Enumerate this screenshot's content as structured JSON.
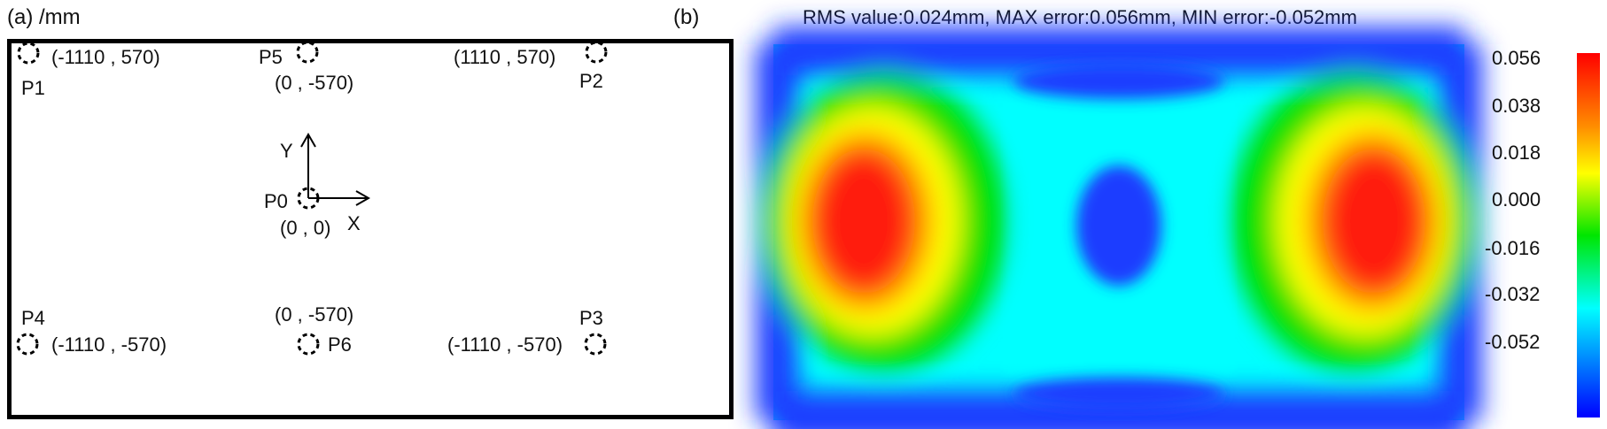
{
  "panel_a": {
    "title": "(a) /mm",
    "points": [
      {
        "id": "P1",
        "coord": "(-1110 , 570)"
      },
      {
        "id": "P2",
        "coord": "(1110 , 570)"
      },
      {
        "id": "P5",
        "coord": "(0 , -570)"
      },
      {
        "id": "P0",
        "coord": "(0 , 0)"
      },
      {
        "id": "P4",
        "coord": "(-1110 , -570)"
      },
      {
        "id": "P6",
        "coord": "(0 , -570)"
      },
      {
        "id": "P3",
        "coord": "(-1110 , -570)"
      }
    ],
    "axis_y": "Y",
    "axis_x": "X"
  },
  "panel_b": {
    "title": "(b)",
    "stats": "RMS value:0.024mm, MAX error:0.056mm, MIN error:-0.052mm",
    "colorbar_ticks": [
      "0.056",
      "0.038",
      "0.018",
      "0.000",
      "-0.016",
      "-0.032",
      "-0.052"
    ],
    "colors": {
      "max": "#ff1a0a",
      "high": "#ffff00",
      "mid": "#00e000",
      "low": "#00ffff",
      "min": "#1a1aff"
    }
  }
}
